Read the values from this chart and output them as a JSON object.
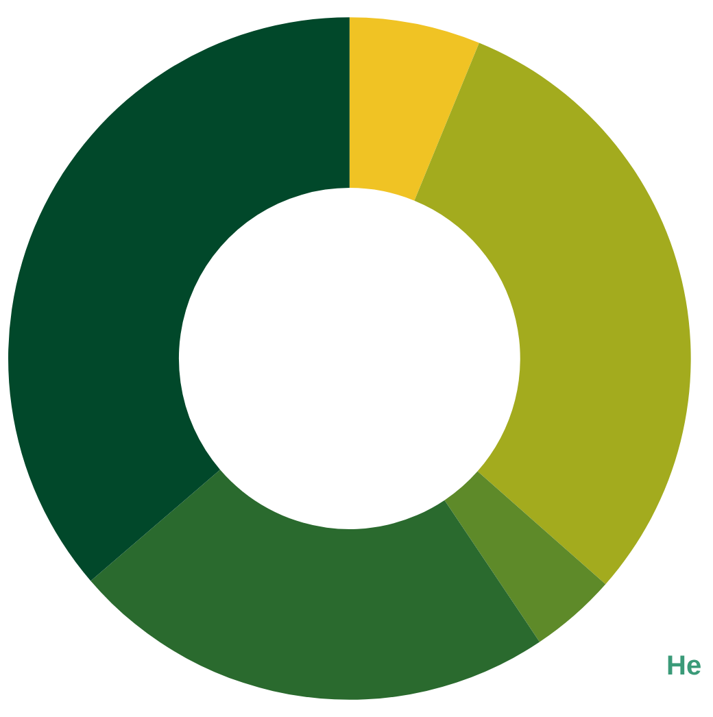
{
  "chart_data": {
    "type": "donut",
    "categories": [
      null,
      null,
      null,
      null,
      null
    ],
    "values": [
      6.2,
      30.3,
      4.1,
      23.1,
      36.3
    ],
    "colors": [
      "#f0c324",
      "#a3ab1e",
      "#5e8a29",
      "#2a6a2e",
      "#01482a"
    ],
    "annotations": [
      "He"
    ],
    "legend": false
  }
}
